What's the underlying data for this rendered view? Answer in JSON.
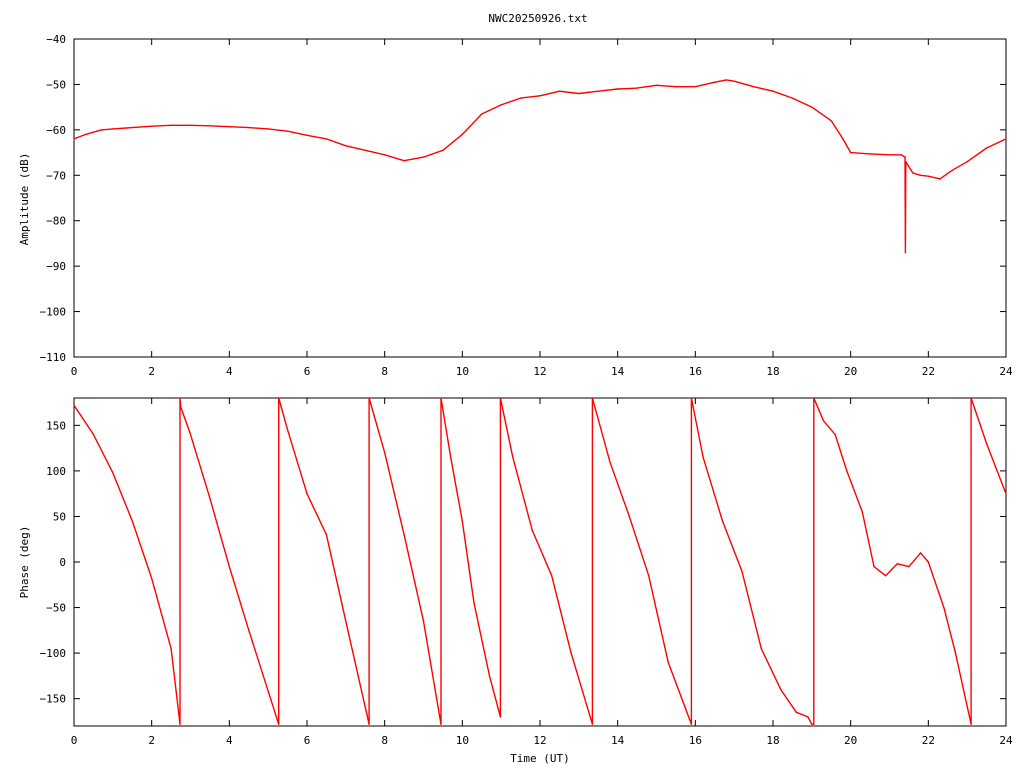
{
  "window": {
    "title": "NWC20250926.txt"
  },
  "colors": {
    "trace": "#ff0000",
    "axis": "#000000",
    "background": "#ffffff"
  },
  "chart_data": [
    {
      "type": "line",
      "title": "NWC20250926.txt",
      "xlabel": "",
      "ylabel": "Amplitude (dB)",
      "xlim": [
        0,
        24
      ],
      "ylim": [
        -110,
        -40
      ],
      "xticks": [
        "0",
        "2",
        "4",
        "6",
        "8",
        "10",
        "12",
        "14",
        "16",
        "18",
        "20",
        "22",
        "24"
      ],
      "yticks": [
        "-40",
        "-50",
        "-60",
        "-70",
        "-80",
        "-90",
        "-100",
        "-110"
      ],
      "grid": false,
      "series": [
        {
          "x": [
            0,
            0.3,
            0.7,
            1.0,
            1.5,
            2.0,
            2.5,
            3.0,
            3.5,
            4.0,
            4.5,
            5.0,
            5.5,
            6.0,
            6.5,
            7.0,
            7.5,
            8.0,
            8.5,
            9.0,
            9.5,
            10.0,
            10.5,
            11.0,
            11.5,
            12.0,
            12.5,
            13.0,
            13.5,
            14.0,
            14.5,
            15.0,
            15.5,
            16.0,
            16.5,
            16.8,
            17.0,
            17.5,
            18.0,
            18.5,
            19.0,
            19.5,
            19.8,
            20.0,
            20.5,
            21.0,
            21.3,
            21.4,
            21.41,
            21.42,
            21.6,
            21.8,
            22.0,
            22.3,
            22.6,
            23.0,
            23.5,
            24.0
          ],
          "values": [
            -62,
            -61,
            -60,
            -59.8,
            -59.5,
            -59.2,
            -59,
            -59,
            -59.1,
            -59.3,
            -59.5,
            -59.8,
            -60.3,
            -61.2,
            -62,
            -63.5,
            -64.5,
            -65.5,
            -66.8,
            -66,
            -64.5,
            -61,
            -56.5,
            -54.5,
            -53,
            -52.5,
            -51.5,
            -52,
            -51.5,
            -51,
            -50.8,
            -50.2,
            -50.5,
            -50.5,
            -49.5,
            -49,
            -49.3,
            -50.5,
            -51.5,
            -53,
            -55,
            -58,
            -62,
            -65,
            -65.3,
            -65.5,
            -65.5,
            -66,
            -87,
            -67,
            -69.5,
            -70,
            -70.2,
            -70.8,
            -69,
            -67,
            -64,
            -62
          ]
        }
      ]
    },
    {
      "type": "line",
      "title": "",
      "xlabel": "Time (UT)",
      "ylabel": "Phase (deg)",
      "xlim": [
        0,
        24
      ],
      "ylim": [
        -180,
        180
      ],
      "xticks": [
        "0",
        "2",
        "4",
        "6",
        "8",
        "10",
        "12",
        "14",
        "16",
        "18",
        "20",
        "22",
        "24"
      ],
      "yticks": [
        "150",
        "100",
        "50",
        "0",
        "-50",
        "-100",
        "-150"
      ],
      "grid": false,
      "series": [
        {
          "x": [
            0,
            0.5,
            1.0,
            1.5,
            2.0,
            2.5,
            2.73,
            2.73,
            2.75,
            3.0,
            3.5,
            4.0,
            4.5,
            5.27,
            5.27,
            5.5,
            6.0,
            6.5,
            7.0,
            7.6,
            7.6,
            8.0,
            8.5,
            9.0,
            9.45,
            9.45,
            9.7,
            10.0,
            10.3,
            10.7,
            10.98,
            10.98,
            11.3,
            11.8,
            12.3,
            12.8,
            13.35,
            13.35,
            13.8,
            14.3,
            14.8,
            15.3,
            15.9,
            15.9,
            16.2,
            16.7,
            17.2,
            17.7,
            18.2,
            18.6,
            18.9,
            19.0,
            19.05,
            19.05,
            19.3,
            19.6,
            19.9,
            20.3,
            20.6,
            20.9,
            21.2,
            21.5,
            21.8,
            22.0,
            22.4,
            22.7,
            23.1,
            23.1,
            23.5,
            24.0
          ],
          "values": [
            172,
            140,
            98,
            45,
            -18,
            -95,
            -178,
            180,
            170,
            140,
            70,
            -5,
            -75,
            -178,
            180,
            145,
            75,
            30,
            -65,
            -178,
            180,
            120,
            30,
            -65,
            -178,
            180,
            115,
            45,
            -45,
            -125,
            -170,
            180,
            115,
            35,
            -15,
            -100,
            -178,
            180,
            110,
            50,
            -15,
            -110,
            -178,
            180,
            115,
            45,
            -10,
            -95,
            -140,
            -165,
            -170,
            -178,
            -178,
            180,
            155,
            140,
            100,
            55,
            -5,
            -15,
            -2,
            -5,
            10,
            0,
            -50,
            -100,
            -178,
            180,
            130,
            75
          ]
        }
      ]
    }
  ]
}
